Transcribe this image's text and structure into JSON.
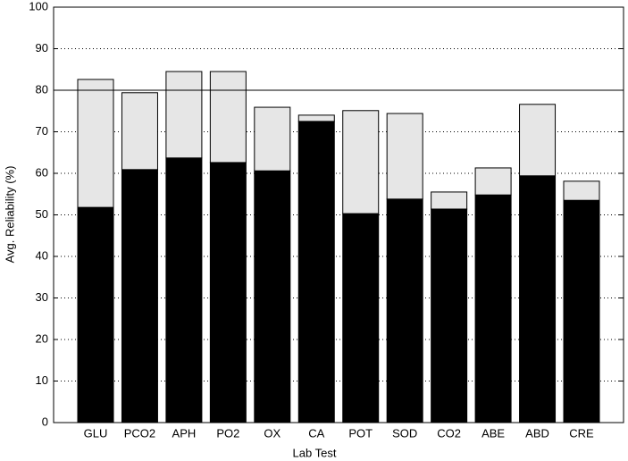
{
  "chart_data": {
    "type": "stacked_bar",
    "x_label": "Lab Test",
    "y_label": "Avg. Reliability (%)",
    "categories": [
      "GLU",
      "PCO2",
      "APH",
      "PO2",
      "OX",
      "CA",
      "POT",
      "SOD",
      "CO2",
      "ABE",
      "ABD",
      "CRE"
    ],
    "series": [
      {
        "color": "#000000",
        "values": [
          51.8,
          60.9,
          63.7,
          62.6,
          60.6,
          72.5,
          50.3,
          53.8,
          51.4,
          54.8,
          59.4,
          53.5
        ]
      },
      {
        "color": "#e6e6e6",
        "values": [
          30.8,
          18.5,
          20.8,
          21.9,
          15.3,
          1.5,
          24.8,
          20.6,
          4.1,
          6.5,
          17.2,
          4.6
        ]
      }
    ],
    "ylim": [
      0,
      100
    ],
    "yticks": [
      0,
      10,
      20,
      30,
      40,
      50,
      60,
      70,
      80,
      90,
      100
    ],
    "grid": true,
    "reference_line": 80
  }
}
